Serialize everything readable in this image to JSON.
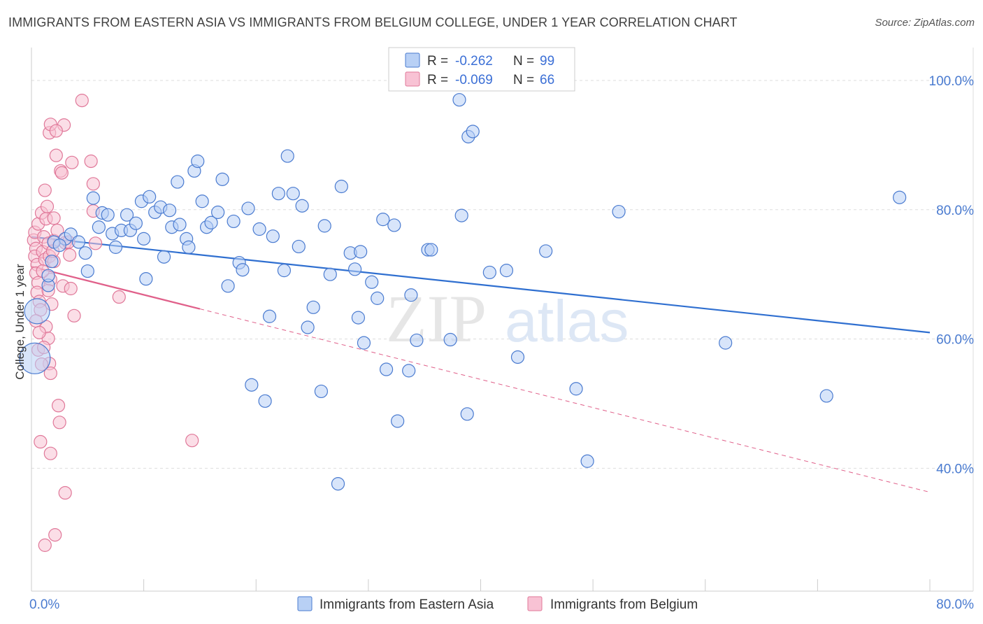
{
  "title": "IMMIGRANTS FROM EASTERN ASIA VS IMMIGRANTS FROM BELGIUM COLLEGE, UNDER 1 YEAR CORRELATION CHART",
  "source": "Source: ZipAtlas.com",
  "watermark": {
    "zip": "ZIP",
    "atlas": "atlas"
  },
  "colors": {
    "blue_fill": "#b8d0f5",
    "blue_stroke": "#4a7bd0",
    "blue_line": "#2f6fd0",
    "pink_fill": "#f8c2d4",
    "pink_stroke": "#e07899",
    "pink_line": "#e0608a",
    "grid": "#dddddd",
    "tick_text": "#4a7bd0"
  },
  "legend": {
    "rows": [
      {
        "r_label": "R = ",
        "r_value": "-0.262",
        "n_label": "N = ",
        "n_value": "99"
      },
      {
        "r_label": "R = ",
        "r_value": "-0.069",
        "n_label": "N = ",
        "n_value": "66"
      }
    ]
  },
  "chart_data": {
    "type": "scatter",
    "xlabel": "",
    "ylabel": "College, Under 1 year",
    "xlim": [
      0,
      80
    ],
    "ylim": [
      21,
      104
    ],
    "x_tick_labels": [
      {
        "value": 0,
        "label": "0.0%"
      },
      {
        "value": 80,
        "label": "80.0%"
      }
    ],
    "y_tick_labels": [
      {
        "value": 40,
        "label": "40.0%"
      },
      {
        "value": 60,
        "label": "60.0%"
      },
      {
        "value": 80,
        "label": "80.0%"
      },
      {
        "value": 100,
        "label": "100.0%"
      }
    ],
    "grid": true,
    "legend_position": "top-center",
    "series": [
      {
        "name": "Immigrants from Eastern Asia",
        "color": "#4a7bd0",
        "trend": {
          "x": [
            0,
            80
          ],
          "y": [
            75.8,
            61.0
          ],
          "dashed_from": null
        },
        "points": [
          [
            0.5,
            64.3,
            18
          ],
          [
            0.3,
            57.0,
            22
          ],
          [
            1.5,
            68.3,
            9
          ],
          [
            1.5,
            69.8,
            9
          ],
          [
            1.8,
            72.0,
            9
          ],
          [
            2.0,
            75.0,
            9
          ],
          [
            3.0,
            75.5,
            9
          ],
          [
            2.5,
            74.5,
            9
          ],
          [
            3.5,
            76.2,
            9
          ],
          [
            4.2,
            75.0,
            9
          ],
          [
            4.8,
            73.3,
            9
          ],
          [
            5.0,
            70.5,
            9
          ],
          [
            5.5,
            81.8,
            9
          ],
          [
            6.0,
            77.3,
            9
          ],
          [
            6.3,
            79.5,
            9
          ],
          [
            6.8,
            79.2,
            9
          ],
          [
            7.2,
            76.3,
            9
          ],
          [
            7.5,
            74.2,
            9
          ],
          [
            8.0,
            76.8,
            9
          ],
          [
            8.5,
            79.2,
            9
          ],
          [
            8.8,
            76.8,
            9
          ],
          [
            9.3,
            77.9,
            9
          ],
          [
            9.8,
            81.3,
            9
          ],
          [
            10.0,
            75.5,
            9
          ],
          [
            10.2,
            69.3,
            9
          ],
          [
            10.5,
            82.0,
            9
          ],
          [
            11.0,
            79.6,
            9
          ],
          [
            11.5,
            80.4,
            9
          ],
          [
            11.8,
            72.7,
            9
          ],
          [
            12.3,
            79.9,
            9
          ],
          [
            12.5,
            77.3,
            9
          ],
          [
            13.0,
            84.3,
            9
          ],
          [
            13.2,
            77.7,
            9
          ],
          [
            13.8,
            75.5,
            9
          ],
          [
            14.0,
            74.2,
            9
          ],
          [
            14.5,
            86.0,
            9
          ],
          [
            14.8,
            87.5,
            9
          ],
          [
            15.2,
            81.3,
            9
          ],
          [
            15.6,
            77.3,
            9
          ],
          [
            16.0,
            78.0,
            9
          ],
          [
            16.6,
            79.6,
            9
          ],
          [
            17.0,
            84.7,
            9
          ],
          [
            17.5,
            68.2,
            9
          ],
          [
            18.0,
            78.2,
            9
          ],
          [
            18.5,
            71.8,
            9
          ],
          [
            18.8,
            70.7,
            9
          ],
          [
            19.3,
            80.2,
            9
          ],
          [
            19.6,
            52.9,
            9
          ],
          [
            20.3,
            77.0,
            9
          ],
          [
            20.8,
            50.4,
            9
          ],
          [
            21.2,
            63.5,
            9
          ],
          [
            21.5,
            75.9,
            9
          ],
          [
            22.0,
            82.5,
            9
          ],
          [
            22.5,
            70.6,
            9
          ],
          [
            22.8,
            88.3,
            9
          ],
          [
            23.3,
            82.5,
            9
          ],
          [
            23.8,
            74.3,
            9
          ],
          [
            24.1,
            80.6,
            9
          ],
          [
            24.6,
            61.8,
            9
          ],
          [
            25.1,
            64.9,
            9
          ],
          [
            25.8,
            51.9,
            9
          ],
          [
            26.1,
            77.5,
            9
          ],
          [
            26.6,
            70.0,
            9
          ],
          [
            27.3,
            37.6,
            9
          ],
          [
            27.6,
            83.6,
            9
          ],
          [
            28.4,
            73.3,
            9
          ],
          [
            28.8,
            70.8,
            9
          ],
          [
            29.1,
            63.3,
            9
          ],
          [
            29.3,
            73.5,
            9
          ],
          [
            29.6,
            59.4,
            9
          ],
          [
            30.3,
            68.8,
            9
          ],
          [
            30.8,
            66.3,
            9
          ],
          [
            31.3,
            78.5,
            9
          ],
          [
            31.6,
            55.3,
            9
          ],
          [
            32.3,
            77.6,
            9
          ],
          [
            32.6,
            47.3,
            9
          ],
          [
            33.6,
            55.1,
            9
          ],
          [
            33.8,
            66.8,
            9
          ],
          [
            34.3,
            59.8,
            9
          ],
          [
            35.3,
            73.8,
            9
          ],
          [
            35.6,
            73.8,
            9
          ],
          [
            37.3,
            59.9,
            9
          ],
          [
            38.3,
            79.1,
            9
          ],
          [
            38.8,
            48.4,
            9
          ],
          [
            38.9,
            91.3,
            9
          ],
          [
            39.3,
            92.1,
            9
          ],
          [
            40.8,
            70.3,
            9
          ],
          [
            42.3,
            70.6,
            9
          ],
          [
            43.3,
            57.2,
            9
          ],
          [
            45.8,
            73.6,
            9
          ],
          [
            48.5,
            52.3,
            9
          ],
          [
            49.5,
            41.1,
            9
          ],
          [
            52.3,
            79.7,
            9
          ],
          [
            61.8,
            59.4,
            9
          ],
          [
            70.8,
            51.2,
            9
          ],
          [
            77.3,
            81.9,
            9
          ],
          [
            38.1,
            97.0,
            9
          ]
        ]
      },
      {
        "name": "Immigrants from Belgium",
        "color": "#e07899",
        "trend": {
          "x": [
            0,
            80
          ],
          "y": [
            71.2,
            36.3
          ],
          "dashed_from": 15
        },
        "points": [
          [
            0.2,
            75.3,
            9
          ],
          [
            0.4,
            74.0,
            9
          ],
          [
            0.3,
            72.8,
            9
          ],
          [
            0.5,
            71.5,
            9
          ],
          [
            0.4,
            70.2,
            9
          ],
          [
            0.6,
            68.7,
            9
          ],
          [
            0.5,
            67.2,
            9
          ],
          [
            0.7,
            65.8,
            9
          ],
          [
            0.8,
            64.5,
            9
          ],
          [
            0.3,
            76.5,
            9
          ],
          [
            0.6,
            77.8,
            9
          ],
          [
            0.9,
            79.5,
            9
          ],
          [
            1.0,
            73.5,
            9
          ],
          [
            1.1,
            75.8,
            9
          ],
          [
            1.2,
            72.3,
            9
          ],
          [
            1.3,
            78.6,
            9
          ],
          [
            1.4,
            80.5,
            9
          ],
          [
            1.5,
            74.8,
            9
          ],
          [
            1.6,
            72.8,
            9
          ],
          [
            1.7,
            69.2,
            9
          ],
          [
            1.8,
            65.4,
            9
          ],
          [
            1.3,
            61.9,
            9
          ],
          [
            1.5,
            60.1,
            9
          ],
          [
            1.6,
            56.2,
            9
          ],
          [
            1.7,
            54.7,
            9
          ],
          [
            1.2,
            83.0,
            9
          ],
          [
            1.6,
            91.9,
            9
          ],
          [
            1.7,
            93.2,
            9
          ],
          [
            2.0,
            72.0,
            9
          ],
          [
            2.0,
            75.2,
            9
          ],
          [
            2.0,
            78.7,
            9
          ],
          [
            2.3,
            76.8,
            9
          ],
          [
            2.4,
            49.7,
            9
          ],
          [
            2.5,
            47.1,
            9
          ],
          [
            2.6,
            86.0,
            9
          ],
          [
            2.7,
            85.7,
            9
          ],
          [
            2.8,
            68.2,
            9
          ],
          [
            2.9,
            93.1,
            9
          ],
          [
            3.0,
            36.2,
            9
          ],
          [
            3.0,
            74.9,
            9
          ],
          [
            3.4,
            73.0,
            9
          ],
          [
            3.5,
            67.8,
            9
          ],
          [
            3.6,
            87.3,
            9
          ],
          [
            3.8,
            63.6,
            9
          ],
          [
            4.5,
            96.9,
            9
          ],
          [
            5.3,
            87.5,
            9
          ],
          [
            5.5,
            84.0,
            9
          ],
          [
            5.7,
            74.8,
            9
          ],
          [
            7.8,
            66.5,
            9
          ],
          [
            5.5,
            79.8,
            9
          ],
          [
            14.3,
            44.3,
            9
          ],
          [
            2.2,
            92.2,
            9
          ],
          [
            0.8,
            44.1,
            9
          ],
          [
            1.7,
            42.3,
            9
          ],
          [
            2.1,
            29.7,
            9
          ],
          [
            1.2,
            28.1,
            9
          ],
          [
            2.2,
            88.4,
            9
          ],
          [
            1.5,
            67.5,
            9
          ],
          [
            1.0,
            70.5,
            9
          ],
          [
            0.6,
            58.3,
            9
          ],
          [
            0.9,
            56.1,
            9
          ],
          [
            1.9,
            73.6,
            9
          ],
          [
            3.3,
            75.0,
            9
          ],
          [
            0.4,
            62.8,
            9
          ],
          [
            0.7,
            61.0,
            9
          ],
          [
            1.1,
            58.7,
            9
          ]
        ]
      }
    ]
  }
}
